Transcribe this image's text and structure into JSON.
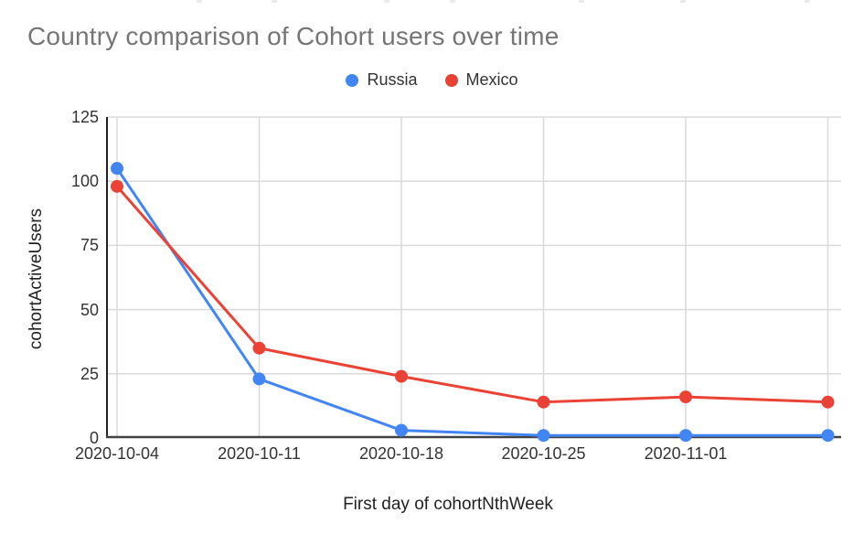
{
  "title": {
    "color": "#757575"
  },
  "chart_data": {
    "type": "line",
    "title": "Country comparison of Cohort users over time",
    "xlabel": "First day of cohortNthWeek",
    "ylabel": "cohortActiveUsers",
    "x_categories": [
      "2020-10-04",
      "2020-10-11",
      "2020-10-18",
      "2020-10-25",
      "2020-11-01",
      ""
    ],
    "series": [
      {
        "name": "Russia",
        "color": "#4285F4",
        "values": [
          105,
          23,
          3,
          1,
          1,
          1
        ]
      },
      {
        "name": "Mexico",
        "color": "#EA4335",
        "values": [
          98,
          35,
          24,
          14,
          16,
          14
        ]
      }
    ],
    "y_ticks": [
      0,
      25,
      50,
      75,
      100,
      125
    ],
    "ylim": [
      0,
      125
    ],
    "grid": true,
    "legend_position": "top",
    "marker": "circle",
    "gridline_color": "#dadada",
    "axis_line_color": "#333333"
  }
}
